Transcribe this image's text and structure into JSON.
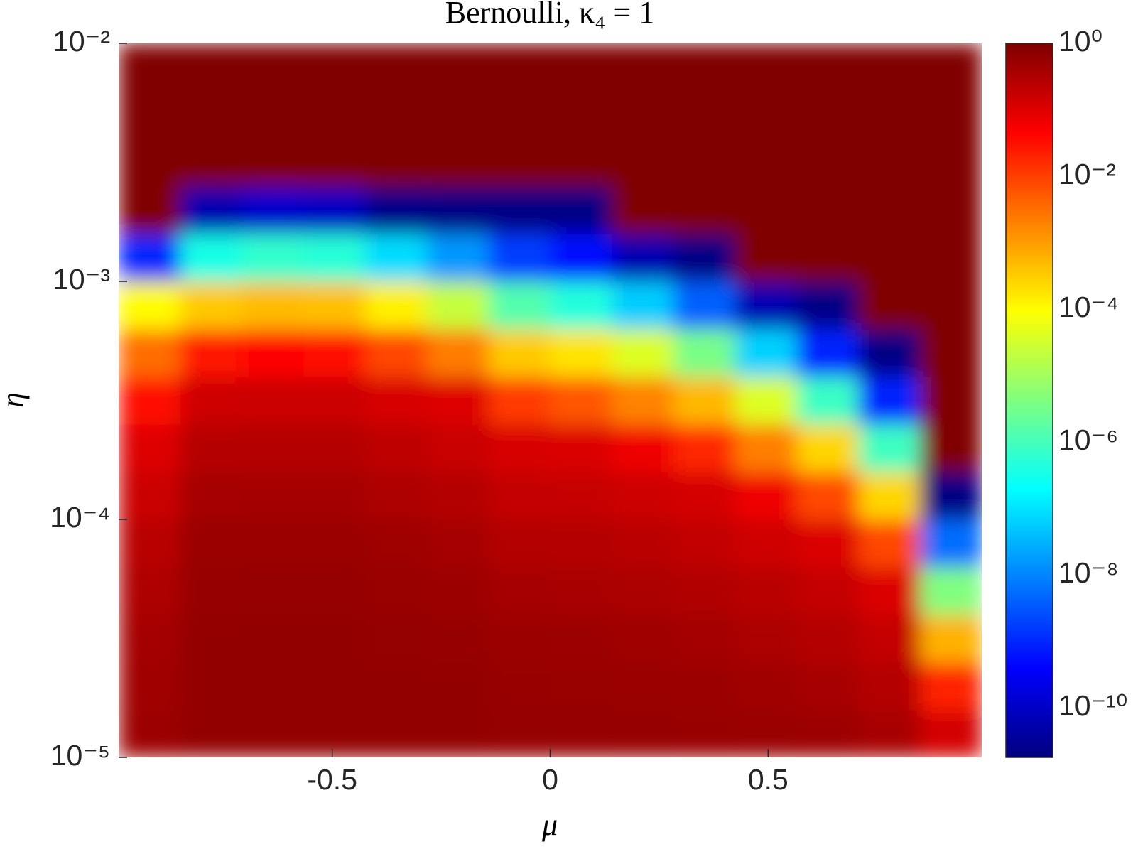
{
  "chart_data": {
    "type": "heatmap",
    "title": "Bernoulli, κ₄ = 1",
    "xlabel": "μ",
    "ylabel": "η",
    "x": [
      -0.919,
      -0.778,
      -0.636,
      -0.495,
      -0.353,
      -0.212,
      -0.071,
      0.071,
      0.212,
      0.353,
      0.495,
      0.636,
      0.778,
      0.919
    ],
    "y": [
      1.26e-05,
      2e-05,
      3.16e-05,
      5.01e-05,
      7.94e-05,
      0.000126,
      0.0002,
      0.000316,
      0.000501,
      0.000794,
      0.00126,
      0.002,
      0.00316,
      0.00501,
      0.00794
    ],
    "z": [
      [
        0.5,
        0.63,
        0.63,
        0.63,
        0.63,
        0.63,
        0.59,
        0.58,
        0.56,
        0.55,
        0.52,
        0.5,
        0.38,
        0.13
      ],
      [
        0.45,
        0.63,
        0.63,
        0.63,
        0.63,
        0.62,
        0.55,
        0.54,
        0.52,
        0.51,
        0.46,
        0.38,
        0.28,
        0.019
      ],
      [
        0.4,
        0.63,
        0.63,
        0.63,
        0.59,
        0.56,
        0.51,
        0.5,
        0.46,
        0.41,
        0.34,
        0.28,
        0.19,
        0.0006
      ],
      [
        0.32,
        0.57,
        0.58,
        0.58,
        0.54,
        0.51,
        0.39,
        0.37,
        0.34,
        0.3,
        0.25,
        0.19,
        0.11,
        4.3e-06
      ],
      [
        0.25,
        0.52,
        0.52,
        0.52,
        0.47,
        0.39,
        0.29,
        0.28,
        0.25,
        0.2,
        0.15,
        0.11,
        0.0083,
        5.6e-09
      ],
      [
        0.16,
        0.39,
        0.4,
        0.4,
        0.33,
        0.28,
        0.19,
        0.18,
        0.15,
        0.13,
        0.066,
        0.0078,
        0.00025,
        2e-11
      ],
      [
        0.1,
        0.27,
        0.28,
        0.28,
        0.22,
        0.17,
        0.12,
        0.11,
        0.066,
        0.017,
        0.0021,
        0.00025,
        8.7e-07,
        1
      ],
      [
        0.032,
        0.15,
        0.16,
        0.16,
        0.12,
        0.1,
        0.011,
        0.0056,
        0.0019,
        0.00052,
        4.1e-05,
        7.9e-07,
        9.1e-10,
        1
      ],
      [
        0.0032,
        0.028,
        0.04,
        0.035,
        0.0083,
        0.0022,
        0.00034,
        0.00018,
        4.1e-05,
        3.5e-06,
        6.5e-08,
        9.1e-10,
        2e-11,
        1
      ],
      [
        0.0001,
        0.00035,
        0.00049,
        0.00043,
        0.00013,
        2.3e-05,
        1.4e-06,
        4.4e-07,
        5.9e-08,
        4.1e-09,
        5.8e-11,
        2e-11,
        1,
        1
      ],
      [
        1e-09,
        3.5e-07,
        6.5e-07,
        4.9e-07,
        8.5e-08,
        1.6e-08,
        1.7e-09,
        4.9e-10,
        5.8e-11,
        2e-11,
        1,
        1,
        1,
        1
      ],
      [
        1,
        5.8e-11,
        1.1e-10,
        8.9e-11,
        2.2e-11,
        2e-11,
        2e-11,
        2e-11,
        1,
        1,
        1,
        1,
        1,
        1
      ],
      [
        1,
        1,
        1,
        1,
        1,
        1,
        1,
        1,
        1,
        1,
        1,
        1,
        1,
        1
      ],
      [
        1,
        1,
        1,
        1,
        1,
        1,
        1,
        1,
        1,
        1,
        1,
        1,
        1,
        1
      ],
      [
        1,
        1,
        1,
        1,
        1,
        1,
        1,
        1,
        1,
        1,
        1,
        1,
        1,
        1
      ]
    ],
    "xlim": [
      -0.99,
      0.99
    ],
    "xticks": [
      -0.5,
      0,
      0.5
    ],
    "ylim": [
      1e-05,
      0.01
    ],
    "yscale": "log",
    "yticks": [
      {
        "value": 1e-05,
        "label": "10⁻⁵"
      },
      {
        "value": 0.0001,
        "label": "10⁻⁴"
      },
      {
        "value": 0.001,
        "label": "10⁻³"
      },
      {
        "value": 0.01,
        "label": "10⁻²"
      }
    ],
    "colormap": "jet",
    "cscale": "log",
    "clim": [
      1.8e-11,
      1
    ],
    "cticks": [
      {
        "value": 1e-10,
        "label": "10⁻¹⁰"
      },
      {
        "value": 1e-08,
        "label": "10⁻⁸"
      },
      {
        "value": 1e-06,
        "label": "10⁻⁶"
      },
      {
        "value": 0.0001,
        "label": "10⁻⁴"
      },
      {
        "value": 0.01,
        "label": "10⁻²"
      },
      {
        "value": 1,
        "label": "10⁰"
      }
    ]
  }
}
